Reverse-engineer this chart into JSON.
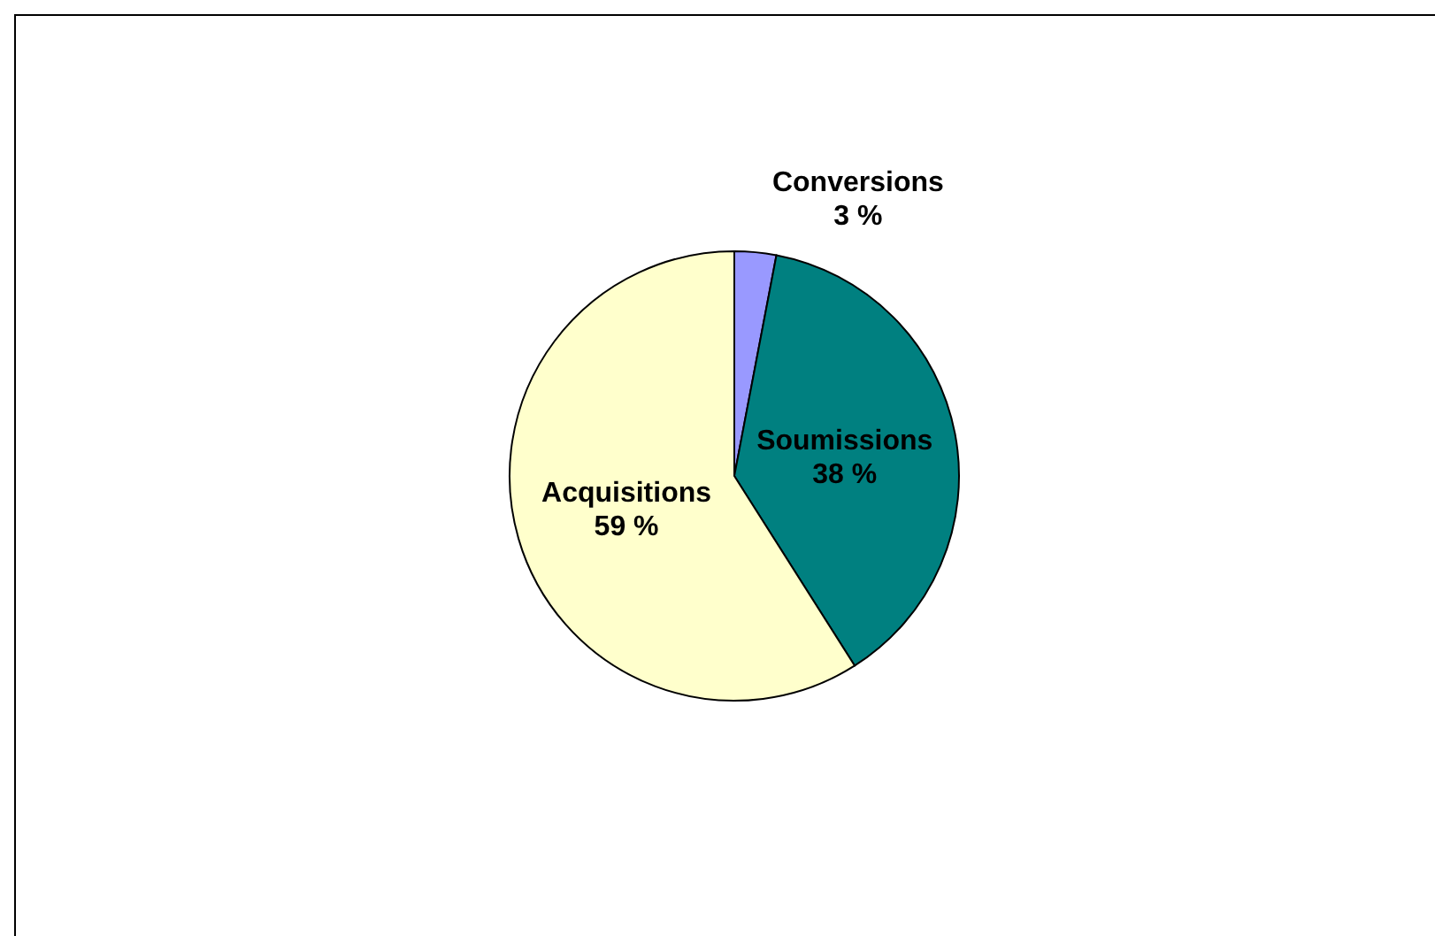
{
  "chart_data": {
    "type": "pie",
    "categories": [
      "Conversions",
      "Soumissions",
      "Acquisitions"
    ],
    "values": [
      3,
      38,
      59
    ],
    "value_labels": [
      "3 %",
      "38 %",
      "59 %"
    ],
    "colors": [
      "#9999ff",
      "#008080",
      "#ffffcc"
    ]
  }
}
